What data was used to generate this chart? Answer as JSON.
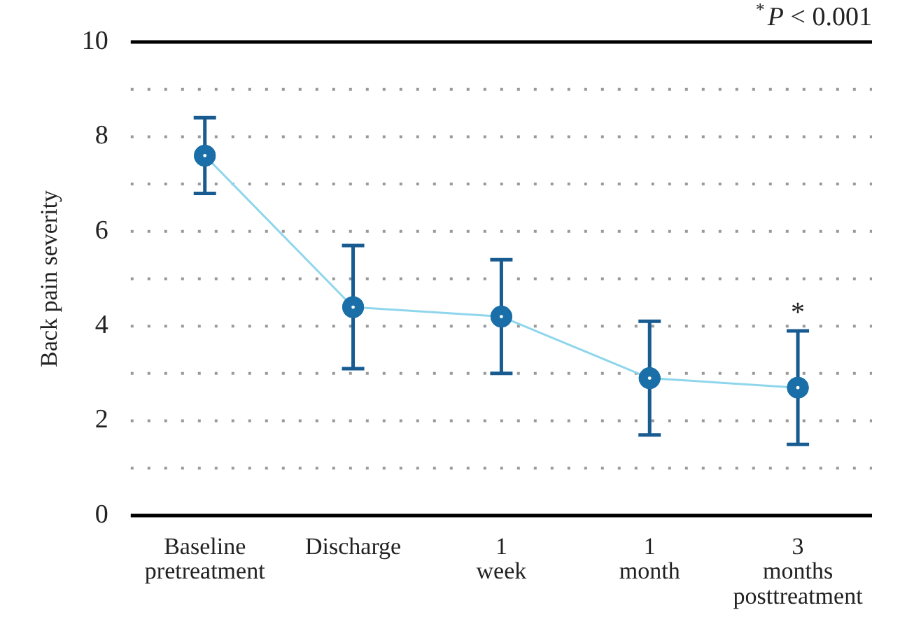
{
  "chart_data": {
    "type": "line",
    "ylabel": "Back pain severity",
    "categories": [
      "Baseline pretreatment",
      "Discharge",
      "1 week",
      "1 month",
      "3 months posttreatment"
    ],
    "series": [
      {
        "color": "#1b6fa8",
        "values": [
          7.6,
          4.4,
          4.2,
          2.9,
          2.7
        ],
        "errors": [
          [
            6.8,
            8.4
          ],
          [
            3.1,
            5.7
          ],
          [
            3.0,
            5.4
          ],
          [
            1.7,
            4.1
          ],
          [
            1.5,
            3.9
          ]
        ]
      }
    ],
    "ylim": [
      0,
      10
    ],
    "yticks": [
      0,
      {
        "value": 1,
        "label": null
      },
      2,
      {
        "value": 3,
        "label": null
      },
      4,
      {
        "value": 5,
        "label": null
      },
      6,
      {
        "value": 7,
        "label": null
      },
      8,
      {
        "value": 9,
        "label": null
      },
      10
    ],
    "grid": "y",
    "marker": "circle",
    "line_style": "solid",
    "legend": false,
    "annotations": [
      "$^{*}$P < 0.001",
      {
        "text": "*",
        "x": "3 months posttreatment",
        "y": 2.7
      }
    ]
  }
}
